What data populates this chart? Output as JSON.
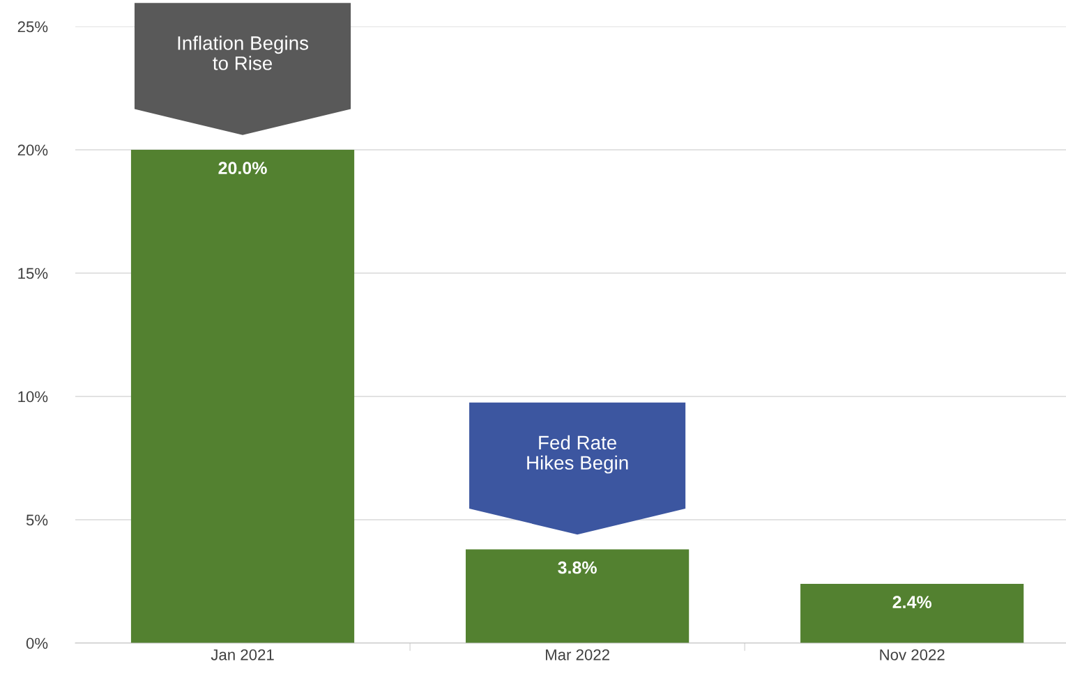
{
  "chart_data": {
    "type": "bar",
    "categories": [
      "Jan 2021",
      "Mar 2022",
      "Nov 2022"
    ],
    "values": [
      20.0,
      3.8,
      2.4
    ],
    "color": "#538130",
    "value_labels": [
      "20.0%",
      "3.8%",
      "2.4%"
    ],
    "ylim": [
      0,
      25
    ],
    "yticks": [
      {
        "value": 0,
        "label": "0%"
      },
      {
        "value": 5,
        "label": "5%"
      },
      {
        "value": 10,
        "label": "10%"
      },
      {
        "value": 15,
        "label": "15%"
      },
      {
        "value": 20,
        "label": "20%"
      },
      {
        "value": 25,
        "label": "25%"
      }
    ],
    "grid": "y",
    "legend": false,
    "annotations": [
      "Inflation Begins\nto Rise",
      "Fed Rate\nHikes Begin"
    ]
  }
}
